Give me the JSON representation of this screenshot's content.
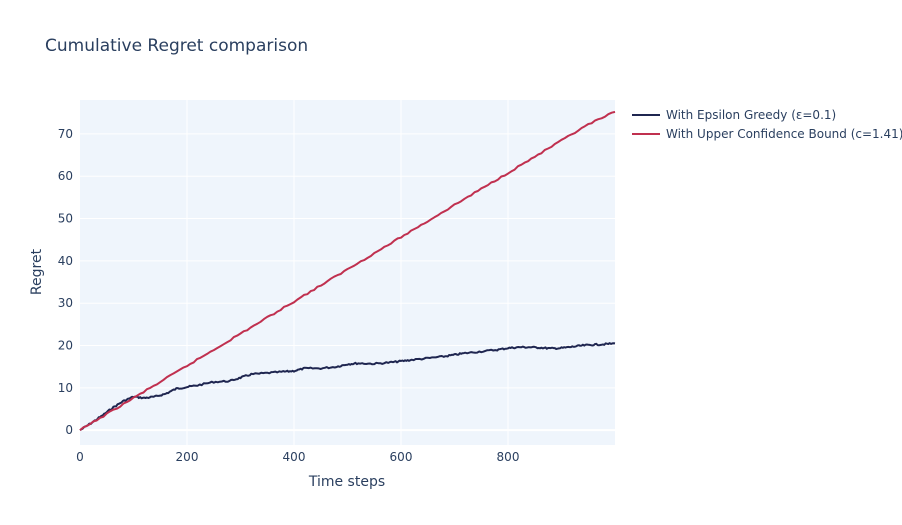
{
  "chart_data": {
    "type": "line",
    "title": "Cumulative Regret comparison",
    "xlabel": "Time steps",
    "ylabel": "Regret",
    "xlim": [
      0,
      1000
    ],
    "ylim": [
      -3.5,
      78
    ],
    "xticks": [
      0,
      200,
      400,
      600,
      800
    ],
    "yticks": [
      0,
      10,
      20,
      30,
      40,
      50,
      60,
      70
    ],
    "grid": true,
    "legend_position": "top-right outside",
    "plot_bg": "#eff5fc",
    "series": [
      {
        "name": "With Epsilon Greedy (ε=0.1)",
        "color": "#1f2650",
        "x": [
          0,
          20,
          40,
          60,
          80,
          100,
          120,
          140,
          160,
          180,
          200,
          220,
          250,
          280,
          300,
          320,
          350,
          380,
          400,
          420,
          450,
          480,
          500,
          520,
          550,
          580,
          600,
          620,
          650,
          680,
          700,
          720,
          750,
          780,
          800,
          820,
          840,
          860,
          880,
          900,
          920,
          940,
          960,
          980,
          1000
        ],
        "y": [
          0,
          1.6,
          3.3,
          5.2,
          6.8,
          7.9,
          7.6,
          7.9,
          8.6,
          9.8,
          10.2,
          10.6,
          11.4,
          11.6,
          12.4,
          13.2,
          13.5,
          13.8,
          14.0,
          14.6,
          14.6,
          15.0,
          15.6,
          15.8,
          15.7,
          16.0,
          16.3,
          16.6,
          17.0,
          17.4,
          17.8,
          18.2,
          18.6,
          19.0,
          19.4,
          19.6,
          19.6,
          19.5,
          19.3,
          19.4,
          19.7,
          20.0,
          20.2,
          20.3,
          20.5
        ]
      },
      {
        "name": "With Upper Confidence Bound (c=1.41)",
        "color": "#c0304f",
        "x": [
          0,
          50,
          100,
          150,
          200,
          250,
          300,
          350,
          400,
          450,
          500,
          550,
          600,
          650,
          700,
          750,
          800,
          850,
          900,
          950,
          1000
        ],
        "y": [
          0,
          3.8,
          7.6,
          11.4,
          15.2,
          19.0,
          22.8,
          26.6,
          30.4,
          34.2,
          38.0,
          41.8,
          45.6,
          49.4,
          53.2,
          57.0,
          60.8,
          64.6,
          68.4,
          72.2,
          75.2
        ]
      }
    ]
  }
}
